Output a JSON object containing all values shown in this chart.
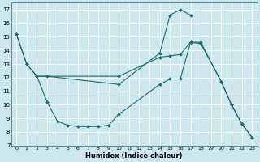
{
  "xlabel": "Humidex (Indice chaleur)",
  "bg_color": "#cce8ee",
  "line_color": "#1a6b6b",
  "grid_color": "#ffffff",
  "xlim": [
    -0.5,
    23.5
  ],
  "ylim": [
    7,
    17.5
  ],
  "xticks": [
    0,
    1,
    2,
    3,
    4,
    5,
    6,
    7,
    8,
    9,
    10,
    11,
    12,
    13,
    14,
    15,
    16,
    17,
    18,
    19,
    20,
    21,
    22,
    23
  ],
  "yticks": [
    7,
    8,
    9,
    10,
    11,
    12,
    13,
    14,
    15,
    16,
    17
  ],
  "line1_x": [
    0,
    1,
    2,
    3,
    10,
    14,
    15,
    16,
    17
  ],
  "line1_y": [
    15.2,
    13.0,
    12.1,
    12.1,
    11.5,
    13.8,
    16.6,
    17.0,
    16.6
  ],
  "line2_x": [
    2,
    3,
    4,
    5,
    6,
    7,
    8,
    9,
    10,
    14,
    15,
    16,
    17,
    18,
    20,
    21,
    22,
    23
  ],
  "line2_y": [
    12.1,
    10.2,
    8.8,
    8.5,
    8.4,
    8.4,
    8.4,
    8.5,
    9.3,
    11.5,
    11.9,
    11.9,
    14.6,
    14.6,
    11.7,
    10.0,
    8.6,
    7.6
  ],
  "line3_x": [
    0,
    1,
    2,
    10,
    14,
    15,
    16,
    17,
    18,
    20,
    21,
    22,
    23
  ],
  "line3_y": [
    15.2,
    13.0,
    12.1,
    12.1,
    13.5,
    13.6,
    13.7,
    14.6,
    14.5,
    11.7,
    10.0,
    8.6,
    7.6
  ],
  "markersize": 2.0,
  "linewidth": 0.8
}
